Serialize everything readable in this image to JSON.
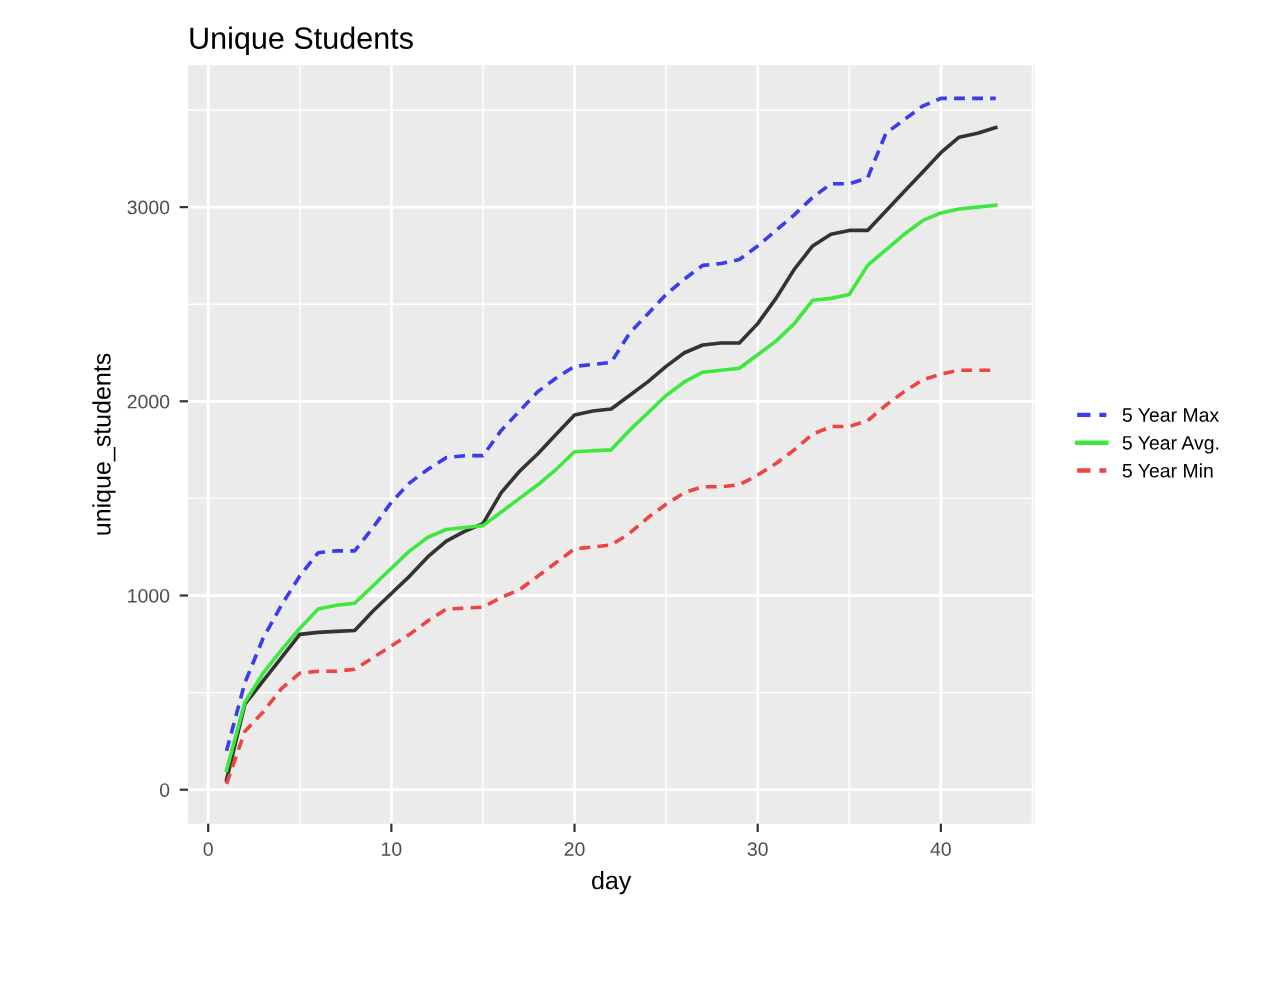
{
  "chart_data": {
    "type": "line",
    "title": "Unique Students",
    "xlabel": "day",
    "ylabel": "unique_students",
    "x": [
      1,
      2,
      3,
      4,
      5,
      6,
      7,
      8,
      9,
      10,
      11,
      12,
      13,
      14,
      15,
      16,
      17,
      18,
      19,
      20,
      21,
      22,
      23,
      24,
      25,
      26,
      27,
      28,
      29,
      30,
      31,
      32,
      33,
      34,
      35,
      36,
      37,
      38,
      39,
      40,
      41,
      42,
      43
    ],
    "series": [
      {
        "color": "#333333",
        "line_style": "solid",
        "values": [
          50,
          440,
          560,
          680,
          800,
          810,
          815,
          820,
          920,
          1010,
          1100,
          1200,
          1280,
          1330,
          1370,
          1530,
          1640,
          1730,
          1830,
          1930,
          1950,
          1960,
          2030,
          2100,
          2180,
          2250,
          2290,
          2300,
          2300,
          2400,
          2530,
          2680,
          2800,
          2860,
          2880,
          2880,
          2980,
          3080,
          3180,
          3280,
          3360,
          3380,
          3410
        ]
      },
      {
        "name": "5 Year Max",
        "color": "#3b3bf0",
        "line_style": "dashed",
        "values": [
          200,
          550,
          780,
          950,
          1100,
          1220,
          1230,
          1230,
          1350,
          1480,
          1580,
          1650,
          1710,
          1720,
          1720,
          1850,
          1950,
          2050,
          2120,
          2180,
          2190,
          2200,
          2350,
          2450,
          2550,
          2630,
          2700,
          2710,
          2730,
          2800,
          2880,
          2960,
          3050,
          3120,
          3120,
          3150,
          3380,
          3450,
          3520,
          3560,
          3560,
          3560,
          3560
        ]
      },
      {
        "name": "5 Year Avg.",
        "color": "#3ee83e",
        "line_style": "solid",
        "values": [
          100,
          450,
          600,
          720,
          830,
          930,
          950,
          960,
          1050,
          1140,
          1230,
          1300,
          1340,
          1350,
          1360,
          1430,
          1500,
          1570,
          1650,
          1740,
          1745,
          1750,
          1850,
          1940,
          2030,
          2100,
          2150,
          2160,
          2170,
          2240,
          2310,
          2400,
          2520,
          2530,
          2550,
          2700,
          2780,
          2860,
          2930,
          2970,
          2990,
          3000,
          3010
        ]
      },
      {
        "name": "5 Year Min",
        "color": "#ee4444",
        "line_style": "dashed",
        "values": [
          30,
          300,
          400,
          520,
          600,
          610,
          610,
          620,
          680,
          740,
          800,
          870,
          930,
          935,
          940,
          990,
          1030,
          1100,
          1170,
          1240,
          1250,
          1260,
          1320,
          1400,
          1470,
          1530,
          1560,
          1560,
          1570,
          1620,
          1680,
          1750,
          1830,
          1870,
          1870,
          1900,
          1980,
          2050,
          2110,
          2140,
          2160,
          2160,
          2160
        ]
      }
    ],
    "xlim": [
      -1.1,
      45.1
    ],
    "ylim": [
      -175,
      3730
    ],
    "xticks": [
      0,
      10,
      20,
      30,
      40
    ],
    "yticks": [
      0,
      1000,
      2000,
      3000
    ],
    "grid": true,
    "legend": "right"
  }
}
